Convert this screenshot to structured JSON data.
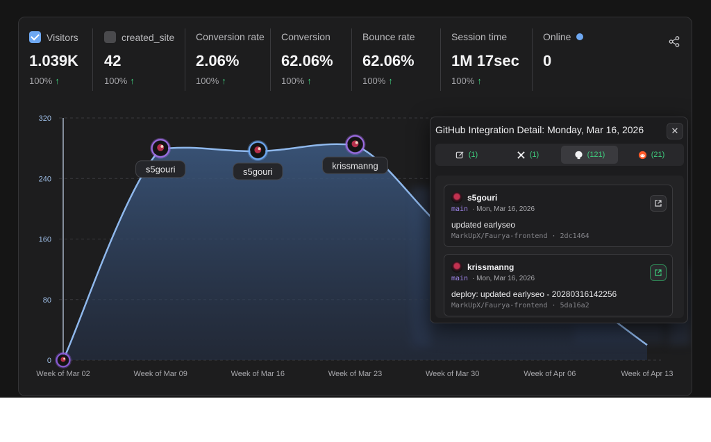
{
  "stats": [
    {
      "label": "Visitors",
      "value": "1.039K",
      "change": "100%",
      "checkbox": "checked"
    },
    {
      "label": "created_site",
      "value": "42",
      "change": "100%",
      "checkbox": "unchecked"
    },
    {
      "label": "Conversion rate",
      "value": "2.06%",
      "change": "100%"
    },
    {
      "label": "Conversion",
      "value": "62.06%",
      "change": "100%"
    },
    {
      "label": "Bounce rate",
      "value": "62.06%",
      "change": "100%"
    },
    {
      "label": "Session time",
      "value": "1M 17sec",
      "change": "100%"
    },
    {
      "label": "Online",
      "value": "0",
      "indicator": "blue-dot"
    }
  ],
  "icons": {
    "share": "share-icon",
    "trend": "arrow-up-icon",
    "close": "close-icon",
    "external": "external-link-icon"
  },
  "colors": {
    "accent": "#6ea8f2",
    "up": "#3fcf7e",
    "branch": "#9d84e8"
  },
  "chart_data": {
    "type": "area",
    "categories": [
      "Week of Mar 02",
      "Week of Mar 09",
      "Week of Mar 16",
      "Week of Mar 23",
      "Week of Mar 30",
      "Week of Apr 06",
      "Week of Apr 13"
    ],
    "values": [
      0,
      279,
      276,
      284,
      165,
      110,
      20
    ],
    "ylim": [
      0,
      320
    ],
    "yticks": [
      "0",
      "80",
      "160",
      "240",
      "320"
    ],
    "grid": "horizontal dashed",
    "markers": [
      {
        "index": 1,
        "label": "s5gouri",
        "ring": "purple"
      },
      {
        "index": 2,
        "label": "s5gouri",
        "ring": "blue"
      },
      {
        "index": 3,
        "label": "krissmanng",
        "ring": "purple"
      }
    ]
  },
  "popup": {
    "title": "GitHub Integration Detail: Monday, Mar 16, 2026",
    "tabs": [
      {
        "icon": "note-icon",
        "count": "(1)"
      },
      {
        "icon": "x-icon",
        "count": "(1)"
      },
      {
        "icon": "github-icon",
        "count": "(121)",
        "active": true
      },
      {
        "icon": "reddit-icon",
        "count": "(21)"
      }
    ],
    "commits": [
      {
        "user": "s5gouri",
        "branch": "main",
        "date": "· Mon, Mar 16, 2026",
        "message": "updated earlyseo",
        "repo": "MarkUpX/Faurya-frontend · 2dc1464"
      },
      {
        "user": "krissmanng",
        "branch": "main",
        "date": "· Mon, Mar 16, 2026",
        "message": "deploy: updated earlyseo - 20280316142256",
        "repo": "MarkUpX/Faurya-frontend · 5da16a2"
      }
    ]
  }
}
